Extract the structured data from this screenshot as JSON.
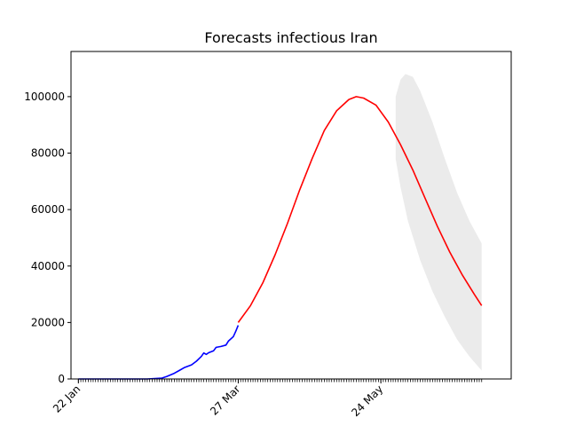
{
  "chart_data": {
    "type": "line",
    "title": "Forecasts infectious Iran",
    "xlabel": "",
    "ylabel": "",
    "x_range": [
      "2020-01-19",
      "2020-07-16"
    ],
    "ylim": [
      0,
      116000
    ],
    "grid": false,
    "legend": "none",
    "x_ticks": [
      {
        "date": "2020-01-22",
        "label": "22 Jan"
      },
      {
        "date": "2020-03-27",
        "label": "27 Mar"
      },
      {
        "date": "2020-05-24",
        "label": "24 May"
      }
    ],
    "y_ticks": [
      {
        "value": 0,
        "label": "0"
      },
      {
        "value": 20000,
        "label": "20000"
      },
      {
        "value": 40000,
        "label": "40000"
      },
      {
        "value": 60000,
        "label": "60000"
      },
      {
        "value": 80000,
        "label": "80000"
      },
      {
        "value": 100000,
        "label": "100000"
      }
    ],
    "series": [
      {
        "color": "#0000ff",
        "points": [
          [
            "2020-01-22",
            0
          ],
          [
            "2020-02-10",
            0
          ],
          [
            "2020-02-19",
            0
          ],
          [
            "2020-02-25",
            300
          ],
          [
            "2020-02-27",
            900
          ],
          [
            "2020-03-01",
            2000
          ],
          [
            "2020-03-03",
            3000
          ],
          [
            "2020-03-05",
            4000
          ],
          [
            "2020-03-08",
            5000
          ],
          [
            "2020-03-10",
            6300
          ],
          [
            "2020-03-12",
            8000
          ],
          [
            "2020-03-13",
            9200
          ],
          [
            "2020-03-14",
            8700
          ],
          [
            "2020-03-15",
            9300
          ],
          [
            "2020-03-17",
            10000
          ],
          [
            "2020-03-18",
            11200
          ],
          [
            "2020-03-20",
            11500
          ],
          [
            "2020-03-22",
            12000
          ],
          [
            "2020-03-23",
            13400
          ],
          [
            "2020-03-25",
            15000
          ],
          [
            "2020-03-26",
            16900
          ],
          [
            "2020-03-27",
            19000
          ]
        ]
      },
      {
        "color": "#ff0000",
        "points": [
          [
            "2020-03-27",
            20000
          ],
          [
            "2020-04-01",
            26000
          ],
          [
            "2020-04-06",
            34000
          ],
          [
            "2020-04-11",
            44000
          ],
          [
            "2020-04-16",
            55000
          ],
          [
            "2020-04-21",
            67000
          ],
          [
            "2020-04-26",
            78000
          ],
          [
            "2020-05-01",
            88000
          ],
          [
            "2020-05-06",
            95000
          ],
          [
            "2020-05-11",
            99000
          ],
          [
            "2020-05-14",
            100000
          ],
          [
            "2020-05-17",
            99500
          ],
          [
            "2020-05-22",
            97000
          ],
          [
            "2020-05-27",
            91000
          ],
          [
            "2020-06-01",
            83000
          ],
          [
            "2020-06-06",
            74000
          ],
          [
            "2020-06-11",
            64000
          ],
          [
            "2020-06-16",
            54000
          ],
          [
            "2020-06-21",
            45000
          ],
          [
            "2020-06-26",
            37000
          ],
          [
            "2020-07-01",
            30000
          ],
          [
            "2020-07-04",
            26000
          ]
        ]
      }
    ],
    "band": {
      "color": "#ebebeb",
      "upper": [
        [
          "2020-05-30",
          100000
        ],
        [
          "2020-06-01",
          106000
        ],
        [
          "2020-06-03",
          108000
        ],
        [
          "2020-06-06",
          107000
        ],
        [
          "2020-06-09",
          102000
        ],
        [
          "2020-06-14",
          91000
        ],
        [
          "2020-06-19",
          78000
        ],
        [
          "2020-06-24",
          66000
        ],
        [
          "2020-06-29",
          56000
        ],
        [
          "2020-07-04",
          48000
        ]
      ],
      "lower": [
        [
          "2020-05-30",
          78000
        ],
        [
          "2020-06-01",
          68000
        ],
        [
          "2020-06-04",
          56000
        ],
        [
          "2020-06-09",
          42000
        ],
        [
          "2020-06-14",
          31000
        ],
        [
          "2020-06-19",
          22000
        ],
        [
          "2020-06-24",
          14000
        ],
        [
          "2020-06-29",
          8000
        ],
        [
          "2020-07-04",
          3000
        ]
      ]
    }
  }
}
